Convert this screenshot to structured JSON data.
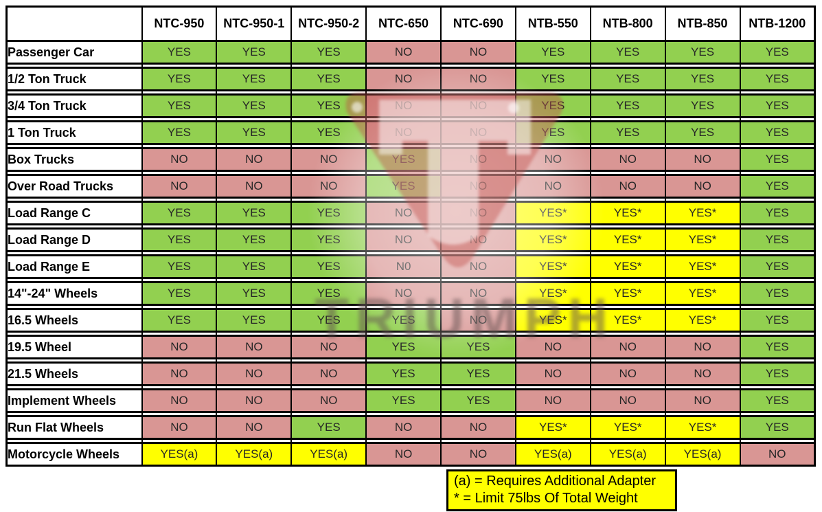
{
  "chart_data": {
    "type": "table",
    "title": "Tire changer model compatibility matrix",
    "columns": [
      "NTC-950",
      "NTC-950-1",
      "NTC-950-2",
      "NTC-650",
      "NTC-690",
      "NTB-550",
      "NTB-800",
      "NTB-850",
      "NTB-1200"
    ],
    "corner_label": "",
    "rows": [
      {
        "label": "Passenger Car",
        "values": [
          "YES",
          "YES",
          "YES",
          "NO",
          "NO",
          "YES",
          "YES",
          "YES",
          "YES"
        ]
      },
      {
        "label": "1/2 Ton Truck",
        "values": [
          "YES",
          "YES",
          "YES",
          "NO",
          "NO",
          "YES",
          "YES",
          "YES",
          "YES"
        ]
      },
      {
        "label": "3/4 Ton Truck",
        "values": [
          "YES",
          "YES",
          "YES",
          "NO",
          "NO",
          "YES",
          "YES",
          "YES",
          "YES"
        ]
      },
      {
        "label": "1 Ton Truck",
        "values": [
          "YES",
          "YES",
          "YES",
          "NO",
          "NO",
          "YES",
          "YES",
          "YES",
          "YES"
        ]
      },
      {
        "label": "Box Trucks",
        "values": [
          "NO",
          "NO",
          "NO",
          "YES",
          "NO",
          "NO",
          "NO",
          "NO",
          "YES"
        ]
      },
      {
        "label": "Over Road Trucks",
        "values": [
          "NO",
          "NO",
          "NO",
          "YES",
          "NO",
          "NO",
          "NO",
          "NO",
          "YES"
        ]
      },
      {
        "label": "Load Range C",
        "values": [
          "YES",
          "YES",
          "YES",
          "NO",
          "NO",
          "YES*",
          "YES*",
          "YES*",
          "YES"
        ]
      },
      {
        "label": "Load Range D",
        "values": [
          "YES",
          "YES",
          "YES",
          "NO",
          "NO",
          "YES*",
          "YES*",
          "YES*",
          "YES"
        ]
      },
      {
        "label": "Load Range E",
        "values": [
          "YES",
          "YES",
          "YES",
          "N0",
          "NO",
          "YES*",
          "YES*",
          "YES*",
          "YES"
        ]
      },
      {
        "label": "14\"-24\" Wheels",
        "values": [
          "YES",
          "YES",
          "YES",
          "NO",
          "NO",
          "YES*",
          "YES*",
          "YES*",
          "YES"
        ]
      },
      {
        "label": "16.5 Wheels",
        "values": [
          "YES",
          "YES",
          "YES",
          "YES",
          "NO",
          "YES*",
          "YES*",
          "YES*",
          "YES"
        ]
      },
      {
        "label": "19.5 Wheel",
        "values": [
          "NO",
          "NO",
          "NO",
          "YES",
          "YES",
          "NO",
          "NO",
          "NO",
          "YES"
        ]
      },
      {
        "label": "21.5 Wheels",
        "values": [
          "NO",
          "NO",
          "NO",
          "YES",
          "YES",
          "NO",
          "NO",
          "NO",
          "YES"
        ]
      },
      {
        "label": "Implement Wheels",
        "values": [
          "NO",
          "NO",
          "NO",
          "YES",
          "YES",
          "NO",
          "NO",
          "NO",
          "YES"
        ]
      },
      {
        "label": "Run Flat Wheels",
        "values": [
          "NO",
          "NO",
          "YES",
          "NO",
          "NO",
          "YES*",
          "YES*",
          "YES*",
          "YES"
        ]
      },
      {
        "label": "Motorcycle Wheels",
        "values": [
          "YES(a)",
          "YES(a)",
          "YES(a)",
          "NO",
          "NO",
          "YES(a)",
          "YES(a)",
          "YES(a)",
          "NO"
        ]
      }
    ],
    "legend": {
      "line1": "(a) = Requires Additional Adapter",
      "line2": "* = Limit 75lbs Of Total Weight"
    },
    "colors": {
      "yes_green": "#92d050",
      "no_red": "#d99694",
      "conditional_yellow": "#ffff00",
      "legend_bg": "#ffff00",
      "grid_border": "#000000"
    },
    "layout": {
      "grid": "on",
      "legend_position": "bottom-right"
    }
  },
  "watermark": {
    "text": "TRIUMPH",
    "shield_color": "#c04d48"
  }
}
